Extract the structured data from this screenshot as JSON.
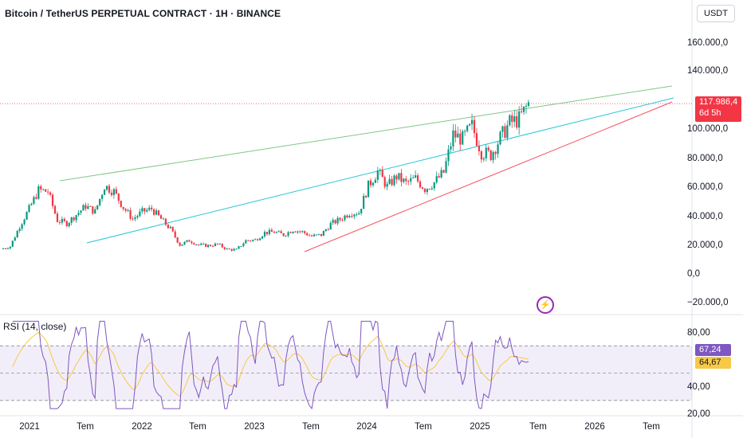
{
  "header": {
    "title": "Bitcoin / TetherUS PERPETUAL CONTRACT · 1H · BINANCE",
    "currency": "USDT"
  },
  "price_axis": {
    "ticks": [
      "160.000,0",
      "140.000,0",
      "100.000,0",
      "80.000,0",
      "60.000,0",
      "40.000,0",
      "20.000,0",
      "0,0",
      "−20.000,0"
    ]
  },
  "last_price": {
    "value": "117.986,4",
    "countdown": "6d 5h",
    "color": "#f23645"
  },
  "rsi": {
    "label": "RSI (14, close)",
    "axis_ticks": [
      "80,00",
      "40,00",
      "20,00"
    ],
    "value": "67,24",
    "ma_value": "64,67",
    "value_color": "#7e57c2",
    "ma_color": "#f7c948"
  },
  "time_axis": {
    "ticks": [
      "2021",
      "Tem",
      "2022",
      "Tem",
      "2023",
      "Tem",
      "2024",
      "Tem",
      "2025",
      "Tem",
      "2026",
      "Tem"
    ]
  },
  "icons": {
    "event": "lightning-icon"
  },
  "colors": {
    "up": "#089981",
    "down": "#f23645",
    "upper_trendline": "#81c784",
    "middle_trendline": "#26c6da",
    "lower_trendline": "#f7525f",
    "rsi_band": "#7e57c2"
  },
  "chart_data": {
    "type": "candlestick",
    "x": [
      "2020-12",
      "2021-01",
      "2021-02",
      "2021-03",
      "2021-04",
      "2021-05",
      "2021-06",
      "2021-07",
      "2021-08",
      "2021-09",
      "2021-10",
      "2021-11",
      "2021-12",
      "2022-01",
      "2022-02",
      "2022-03",
      "2022-04",
      "2022-05",
      "2022-06",
      "2022-07",
      "2022-08",
      "2022-09",
      "2022-10",
      "2022-11",
      "2022-12",
      "2023-01",
      "2023-02",
      "2023-03",
      "2023-04",
      "2023-05",
      "2023-06",
      "2023-07",
      "2023-08",
      "2023-09",
      "2023-10",
      "2023-11",
      "2023-12",
      "2024-01",
      "2024-02",
      "2024-03",
      "2024-04",
      "2024-05",
      "2024-06",
      "2024-07",
      "2024-08",
      "2024-09",
      "2024-10",
      "2024-11",
      "2024-12",
      "2025-01",
      "2025-02",
      "2025-03",
      "2025-04",
      "2025-05",
      "2025-06",
      "2025-07"
    ],
    "close": [
      19000,
      33000,
      45000,
      58000,
      57000,
      37000,
      35000,
      41000,
      47000,
      43000,
      61000,
      57000,
      46000,
      38000,
      43000,
      45000,
      38000,
      31000,
      20000,
      23000,
      20000,
      19500,
      20500,
      17000,
      16600,
      23000,
      23500,
      28500,
      29000,
      27000,
      30500,
      29000,
      26000,
      27000,
      34500,
      37700,
      42200,
      42500,
      61000,
      71000,
      60500,
      67500,
      62700,
      66000,
      59000,
      63300,
      70300,
      96400,
      93400,
      102400,
      84300,
      82500,
      94200,
      104600,
      107100,
      117986
    ],
    "price_axis_range": [
      -20000,
      160000
    ],
    "rsi": {
      "name": "RSI (14, close)",
      "last": 67.24,
      "ma_last": 64.67,
      "range": [
        20,
        90
      ],
      "band": [
        30,
        70
      ]
    }
  }
}
